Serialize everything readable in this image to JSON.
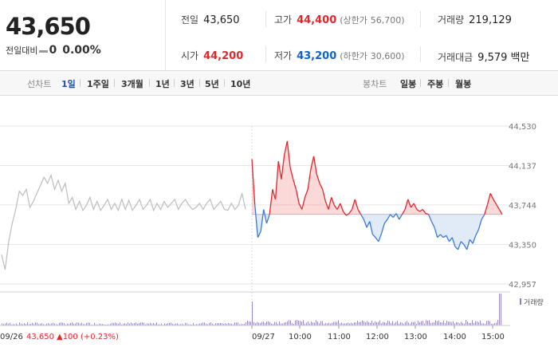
{
  "summary": {
    "price": "43,650",
    "change_label": "전일대비",
    "change_value": "0",
    "change_pct": "0.00%"
  },
  "info": {
    "prev_close_label": "전일",
    "prev_close": "43,650",
    "high_label": "고가",
    "high": "44,400",
    "upper_limit_label": "(상한가",
    "upper_limit": "56,700)",
    "volume_label": "거래량",
    "volume": "219,129",
    "open_label": "시가",
    "open": "44,200",
    "low_label": "저가",
    "low": "43,200",
    "lower_limit_label": "(하한가",
    "lower_limit": "30,600)",
    "value_label": "거래대금",
    "value": "9,579 백만"
  },
  "tabs": {
    "line_label": "선차트",
    "periods": [
      "1일",
      "1주일",
      "3개월",
      "1년",
      "3년",
      "5년",
      "10년"
    ],
    "candle_label": "봉차트",
    "candles": [
      "일봉",
      "주봉",
      "월봉"
    ]
  },
  "chart_data": {
    "type": "line",
    "y_ticks": [
      "44,530",
      "44,137",
      "43,744",
      "43,350",
      "42,957"
    ],
    "y_tick_values": [
      44530,
      44137,
      43744,
      43350,
      42957
    ],
    "reference_price": 43650,
    "x_labels": [
      "09/26",
      "09/27",
      "10:00",
      "11:00",
      "12:00",
      "13:00",
      "14:00",
      "15:00"
    ],
    "prev_day_label": "09/26",
    "prev_day_close": "43,650",
    "prev_day_change": "▲100 (+0.23%)",
    "volume_legend": "거래량",
    "prev_day_series": [
      43250,
      43100,
      43380,
      43560,
      43700,
      43880,
      43840,
      43900,
      43720,
      43780,
      43860,
      43940,
      44020,
      43960,
      44040,
      43900,
      43990,
      43880,
      43960,
      43760,
      43820,
      43700,
      43780,
      43690,
      43740,
      43820,
      43700,
      43780,
      43690,
      43740,
      43800,
      43700,
      43760,
      43690,
      43800,
      43700,
      43790,
      43690,
      43740,
      43800,
      43700,
      43740,
      43800,
      43690,
      43760,
      43700,
      43780,
      43720,
      43760,
      43800,
      43700,
      43760,
      43800,
      43740,
      43700,
      43720,
      43760,
      43700,
      43760,
      43800,
      43700,
      43740,
      43780,
      43700,
      43690,
      43760,
      43700,
      43740,
      43860,
      43700
    ],
    "today_series": [
      44200,
      43750,
      43420,
      43480,
      43700,
      43560,
      43650,
      43900,
      43800,
      44180,
      44000,
      44240,
      44380,
      44120,
      44000,
      43900,
      43760,
      43700,
      43820,
      43900,
      44100,
      44230,
      44050,
      43960,
      43900,
      43780,
      43700,
      43820,
      43740,
      43700,
      43760,
      43680,
      43640,
      43660,
      43700,
      43800,
      43700,
      43650,
      43600,
      43520,
      43580,
      43450,
      43420,
      43380,
      43460,
      43560,
      43600,
      43650,
      43620,
      43660,
      43600,
      43650,
      43700,
      43800,
      43720,
      43760,
      43700,
      43680,
      43700,
      43660,
      43650,
      43580,
      43520,
      43420,
      43450,
      43420,
      43440,
      43380,
      43420,
      43330,
      43300,
      43380,
      43350,
      43300,
      43400,
      43360,
      43440,
      43500,
      43600,
      43650,
      43750,
      43860,
      43800,
      43750,
      43700,
      43650
    ]
  }
}
